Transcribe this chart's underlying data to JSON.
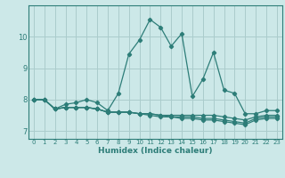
{
  "xlabel": "Humidex (Indice chaleur)",
  "ylabel": "",
  "background_color": "#cce8e8",
  "line_color": "#2d7d78",
  "grid_color": "#aacccc",
  "xlim": [
    -0.5,
    23.5
  ],
  "ylim": [
    6.75,
    11.0
  ],
  "yticks": [
    7,
    8,
    9,
    10
  ],
  "xticks": [
    0,
    1,
    2,
    3,
    4,
    5,
    6,
    7,
    8,
    9,
    10,
    11,
    12,
    13,
    14,
    15,
    16,
    17,
    18,
    19,
    20,
    21,
    22,
    23
  ],
  "series": [
    [
      8.0,
      8.0,
      7.7,
      7.85,
      7.9,
      8.0,
      7.9,
      7.65,
      8.2,
      9.45,
      9.9,
      10.55,
      10.3,
      9.7,
      10.1,
      8.1,
      8.65,
      9.5,
      8.3,
      8.2,
      7.55,
      7.55,
      7.65,
      7.65
    ],
    [
      8.0,
      8.0,
      7.7,
      7.75,
      7.75,
      7.75,
      7.7,
      7.6,
      7.6,
      7.6,
      7.55,
      7.55,
      7.5,
      7.5,
      7.5,
      7.5,
      7.5,
      7.5,
      7.45,
      7.4,
      7.35,
      7.45,
      7.5,
      7.5
    ],
    [
      8.0,
      8.0,
      7.7,
      7.75,
      7.75,
      7.75,
      7.7,
      7.6,
      7.6,
      7.6,
      7.55,
      7.55,
      7.5,
      7.45,
      7.45,
      7.45,
      7.4,
      7.4,
      7.35,
      7.3,
      7.25,
      7.4,
      7.45,
      7.45
    ],
    [
      8.0,
      8.0,
      7.7,
      7.75,
      7.75,
      7.75,
      7.7,
      7.6,
      7.6,
      7.6,
      7.55,
      7.5,
      7.45,
      7.45,
      7.4,
      7.4,
      7.35,
      7.35,
      7.3,
      7.25,
      7.2,
      7.35,
      7.4,
      7.4
    ]
  ]
}
